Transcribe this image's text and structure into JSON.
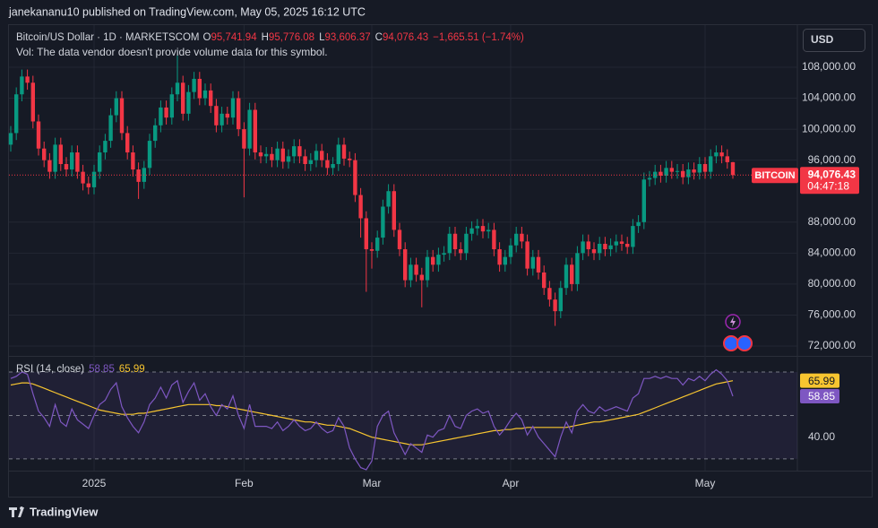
{
  "header": "janekananu10 published on TradingView.com, May 05, 2025 16:12 UTC",
  "footer": "TradingView",
  "currency_button": "USD",
  "volume_note": "Vol: The data vendor doesn't provide volume data for this symbol.",
  "chart_data": [
    {
      "type": "candlestick",
      "legend": {
        "symbol": "Bitcoin/US Dollar · 1D · MARKETSCOM",
        "fields": [
          {
            "key": "O",
            "label": "95,741.94"
          },
          {
            "key": "H",
            "label": "95,776.08"
          },
          {
            "key": "L",
            "label": "93,606.37"
          },
          {
            "key": "C",
            "label": "94,076.43"
          }
        ],
        "change": "−1,665.51 (−1.74%)"
      },
      "last_price": {
        "name": "BITCOIN",
        "label": "94,076.43",
        "countdown": "04:47:18"
      },
      "colors": {
        "up": "#089981",
        "down": "#f23645"
      },
      "categories": [
        null,
        null,
        null,
        null,
        null,
        null,
        null,
        null,
        null,
        null,
        null,
        null,
        null,
        null,
        null,
        "2025",
        null,
        null,
        null,
        null,
        null,
        null,
        null,
        null,
        null,
        null,
        null,
        null,
        null,
        null,
        null,
        null,
        null,
        null,
        null,
        null,
        null,
        null,
        null,
        null,
        null,
        null,
        "Feb",
        null,
        null,
        null,
        null,
        null,
        null,
        null,
        null,
        null,
        null,
        null,
        null,
        null,
        null,
        null,
        null,
        null,
        null,
        null,
        null,
        null,
        null,
        "Mar",
        null,
        null,
        null,
        null,
        null,
        null,
        null,
        null,
        null,
        null,
        null,
        null,
        null,
        null,
        null,
        null,
        null,
        null,
        null,
        null,
        null,
        null,
        null,
        null,
        "Apr",
        null,
        null,
        null,
        null,
        null,
        null,
        null,
        null,
        null,
        null,
        null,
        null,
        null,
        null,
        null,
        null,
        null,
        null,
        null,
        null,
        null,
        null,
        null,
        null,
        null,
        null,
        null,
        null,
        null,
        null,
        null,
        null,
        null,
        null,
        "May",
        null,
        null,
        null,
        null,
        null
      ],
      "open": [
        98000,
        99500,
        104500,
        106800,
        106000,
        101000,
        97500,
        96000,
        94500,
        98000,
        95500,
        94800,
        97000,
        94500,
        93000,
        92500,
        94500,
        97000,
        98500,
        101800,
        104000,
        99500,
        97000,
        94800,
        93200,
        95000,
        98500,
        100500,
        102800,
        101500,
        104500,
        106000,
        102000,
        104800,
        106500,
        104000,
        105000,
        103000,
        100500,
        102000,
        101500,
        104000,
        100000,
        97500,
        102500,
        97000,
        96500,
        96800,
        96000,
        97500,
        95800,
        96500,
        97800,
        96500,
        95500,
        96000,
        97200,
        96000,
        95000,
        95500,
        98000,
        96200,
        96000,
        91500,
        88500,
        84500,
        84300,
        86000,
        90000,
        92000,
        87000,
        84500,
        80500,
        82500,
        81200,
        80500,
        83500,
        82500,
        83800,
        84000,
        86500,
        84500,
        84000,
        86500,
        87200,
        87500,
        86800,
        87000,
        84500,
        82500,
        83500,
        85000,
        86500,
        85500,
        82000,
        83500,
        81500,
        79500,
        78000,
        76500,
        79500,
        82500,
        80000,
        84000,
        85500,
        84500,
        84000,
        85200,
        84500,
        85000,
        85500,
        85200,
        84800,
        87500,
        88000,
        93500,
        93700,
        94500,
        94000,
        95000,
        94500,
        94600,
        93800,
        94800,
        94400,
        95500,
        94500,
        96500,
        97000,
        96500,
        95741.94
      ],
      "high": [
        100400,
        105400,
        107700,
        107700,
        106900,
        101900,
        98400,
        96900,
        98900,
        98900,
        96400,
        97900,
        97900,
        95400,
        93900,
        95400,
        97900,
        99400,
        102700,
        104900,
        104900,
        100400,
        97900,
        95700,
        95900,
        99400,
        101400,
        103700,
        103700,
        105400,
        109500,
        106900,
        105700,
        107400,
        107400,
        105900,
        105900,
        103900,
        102900,
        102900,
        104900,
        104900,
        100900,
        103400,
        103400,
        97900,
        97700,
        97700,
        98400,
        98400,
        97400,
        98700,
        98700,
        97400,
        96900,
        98100,
        98100,
        96900,
        96400,
        98900,
        98900,
        97100,
        96900,
        92400,
        89400,
        85400,
        86900,
        90900,
        92900,
        92900,
        87900,
        85400,
        83400,
        83400,
        82100,
        84400,
        84400,
        84700,
        84900,
        87400,
        87400,
        85400,
        87400,
        88100,
        88400,
        88400,
        87900,
        87900,
        85400,
        84400,
        85900,
        87400,
        87400,
        86400,
        84400,
        84400,
        82400,
        80400,
        78900,
        80400,
        83400,
        83400,
        84900,
        86400,
        86400,
        85400,
        86100,
        86100,
        85900,
        86400,
        86400,
        86100,
        88400,
        88900,
        94400,
        94600,
        95400,
        95400,
        95900,
        95900,
        95500,
        95500,
        95700,
        95700,
        96400,
        96400,
        97400,
        97900,
        97900,
        97400,
        95776.08
      ],
      "low": [
        97100,
        98600,
        103600,
        105100,
        100100,
        96600,
        95100,
        93600,
        93600,
        94600,
        93900,
        93900,
        93600,
        92100,
        91600,
        91600,
        93600,
        96100,
        97600,
        100900,
        98600,
        96100,
        93900,
        91000,
        92300,
        94100,
        97600,
        99600,
        100600,
        100600,
        103600,
        101100,
        101100,
        103900,
        103100,
        103100,
        102100,
        99600,
        99600,
        100600,
        100600,
        99100,
        91200,
        96600,
        96100,
        95600,
        95600,
        95100,
        95100,
        94900,
        94900,
        95600,
        95600,
        94600,
        94600,
        95100,
        95100,
        94100,
        94100,
        94600,
        95300,
        95100,
        90600,
        86000,
        79000,
        82000,
        83400,
        85100,
        89100,
        86100,
        83600,
        79600,
        79600,
        80300,
        77000,
        79600,
        81600,
        81600,
        82900,
        83100,
        83600,
        83100,
        83100,
        85600,
        86300,
        85900,
        85900,
        83600,
        81600,
        81600,
        82600,
        84100,
        84600,
        81100,
        81100,
        80600,
        78600,
        77100,
        74600,
        75600,
        78600,
        79100,
        79100,
        83100,
        83600,
        83100,
        83100,
        83600,
        83600,
        84100,
        84300,
        83900,
        83900,
        86600,
        87100,
        92600,
        92800,
        93100,
        93100,
        93600,
        93600,
        92900,
        92900,
        93500,
        93500,
        93600,
        93600,
        95600,
        95600,
        94900,
        93606.37
      ],
      "close": [
        99500,
        104500,
        106800,
        106000,
        101000,
        97500,
        96000,
        94500,
        98000,
        95500,
        94800,
        97000,
        94500,
        93000,
        92500,
        94500,
        97000,
        98500,
        101800,
        104000,
        99500,
        97000,
        94800,
        93200,
        95000,
        98500,
        100500,
        102800,
        101500,
        104500,
        106000,
        102000,
        104800,
        106500,
        104000,
        105000,
        103000,
        100500,
        102000,
        101500,
        104000,
        100000,
        97500,
        102500,
        97000,
        96500,
        96800,
        96000,
        97500,
        95800,
        96500,
        97800,
        96500,
        95500,
        96000,
        97200,
        96000,
        95000,
        95500,
        98000,
        96200,
        96000,
        91500,
        88500,
        84500,
        84300,
        86000,
        90000,
        92000,
        87000,
        84500,
        80500,
        82500,
        81200,
        80500,
        83500,
        82500,
        83800,
        84000,
        86500,
        84500,
        84000,
        86500,
        87200,
        87500,
        86800,
        87000,
        84500,
        82500,
        83500,
        85000,
        86500,
        85500,
        82000,
        83500,
        81500,
        79500,
        78000,
        76500,
        79500,
        82500,
        80000,
        84000,
        85500,
        84500,
        84000,
        85200,
        84500,
        85000,
        85500,
        85200,
        84800,
        87500,
        88000,
        93500,
        93700,
        94500,
        94000,
        95000,
        94500,
        94600,
        93800,
        94800,
        94400,
        95500,
        94500,
        96500,
        97000,
        96500,
        95741.94,
        94076.43
      ],
      "ylim": [
        70730,
        113440
      ],
      "yticks": [
        {
          "value": 108000,
          "label": "108,000.00"
        },
        {
          "value": 104000,
          "label": "104,000.00"
        },
        {
          "value": 100000,
          "label": "100,000.00"
        },
        {
          "value": 96000,
          "label": "96,000.00"
        },
        {
          "value": 88000,
          "label": "88,000.00"
        },
        {
          "value": 84000,
          "label": "84,000.00"
        },
        {
          "value": 80000,
          "label": "80,000.00"
        },
        {
          "value": 76000,
          "label": "76,000.00"
        },
        {
          "value": 72000,
          "label": "72,000.00"
        }
      ],
      "grid": true
    },
    {
      "type": "line",
      "title": "RSI (14, close)",
      "ylim": [
        24.6,
        77
      ],
      "yticks": [
        {
          "value": 40,
          "label": "40.00"
        }
      ],
      "levels": [
        70,
        50,
        30
      ],
      "series": [
        {
          "color": "#7e57c2",
          "last_label": "58.85",
          "values": [
            67,
            68,
            70,
            69,
            60,
            52,
            49,
            45,
            55,
            47,
            45,
            53,
            48,
            46,
            44,
            50,
            55,
            57,
            62,
            65,
            54,
            49,
            45,
            42,
            47,
            55,
            58,
            63,
            58,
            64,
            66,
            56,
            61,
            65,
            57,
            60,
            54,
            50,
            55,
            53,
            59,
            50,
            44,
            55,
            45,
            45,
            45,
            44,
            47,
            43,
            45,
            48,
            45,
            43,
            44,
            47,
            44,
            42,
            43,
            49,
            45,
            35,
            30,
            26,
            25,
            29,
            45,
            50,
            52,
            42,
            37,
            32,
            37,
            35,
            33,
            41,
            40,
            43,
            44,
            50,
            45,
            44,
            50,
            52,
            53,
            51,
            52,
            45,
            41,
            44,
            48,
            51,
            48,
            41,
            45,
            40,
            37,
            34,
            31,
            40,
            47,
            42,
            52,
            55,
            52,
            51,
            54,
            52,
            53,
            54,
            53,
            52,
            58,
            60,
            67,
            67,
            68,
            67,
            68,
            67,
            67,
            64,
            67,
            66,
            68,
            66,
            69,
            71,
            69,
            66,
            58.85
          ]
        },
        {
          "color": "#f7c530",
          "last_label": "65.99",
          "values": [
            64,
            64.5,
            65,
            65,
            64.5,
            63.5,
            62.5,
            61.5,
            60.5,
            59.5,
            58.5,
            57.5,
            56.5,
            55.5,
            54.5,
            53.5,
            52.5,
            52,
            51.5,
            51,
            50.5,
            50.5,
            50.5,
            51,
            51,
            51.5,
            52,
            52.5,
            53,
            53.5,
            54,
            54.5,
            55,
            55,
            55,
            55,
            55,
            54.5,
            54.5,
            54,
            53.5,
            53,
            52.5,
            52,
            51.5,
            51,
            50.5,
            50,
            49.5,
            49,
            48.5,
            48,
            47.5,
            47,
            47,
            46.5,
            46,
            45.5,
            45.5,
            45,
            44.5,
            44,
            43,
            42,
            41,
            40,
            39.5,
            39,
            38.5,
            38,
            37.5,
            37,
            36.5,
            36.5,
            36.5,
            37,
            37.5,
            38,
            38.5,
            39,
            39.5,
            40,
            40.5,
            41,
            41.5,
            42,
            42.5,
            43,
            43,
            43.5,
            43.5,
            44,
            44,
            44.5,
            44.5,
            44.5,
            44.5,
            44.5,
            44.5,
            44.5,
            44.5,
            45,
            45.5,
            46,
            46.5,
            47,
            47,
            47.5,
            48,
            48.5,
            49,
            49.5,
            50,
            50.5,
            51.5,
            52.5,
            53.5,
            54.5,
            55.5,
            56.5,
            57.5,
            58.5,
            59.5,
            60.5,
            61.5,
            62.5,
            63.5,
            64.5,
            65,
            65.5,
            65.99
          ]
        }
      ]
    }
  ]
}
